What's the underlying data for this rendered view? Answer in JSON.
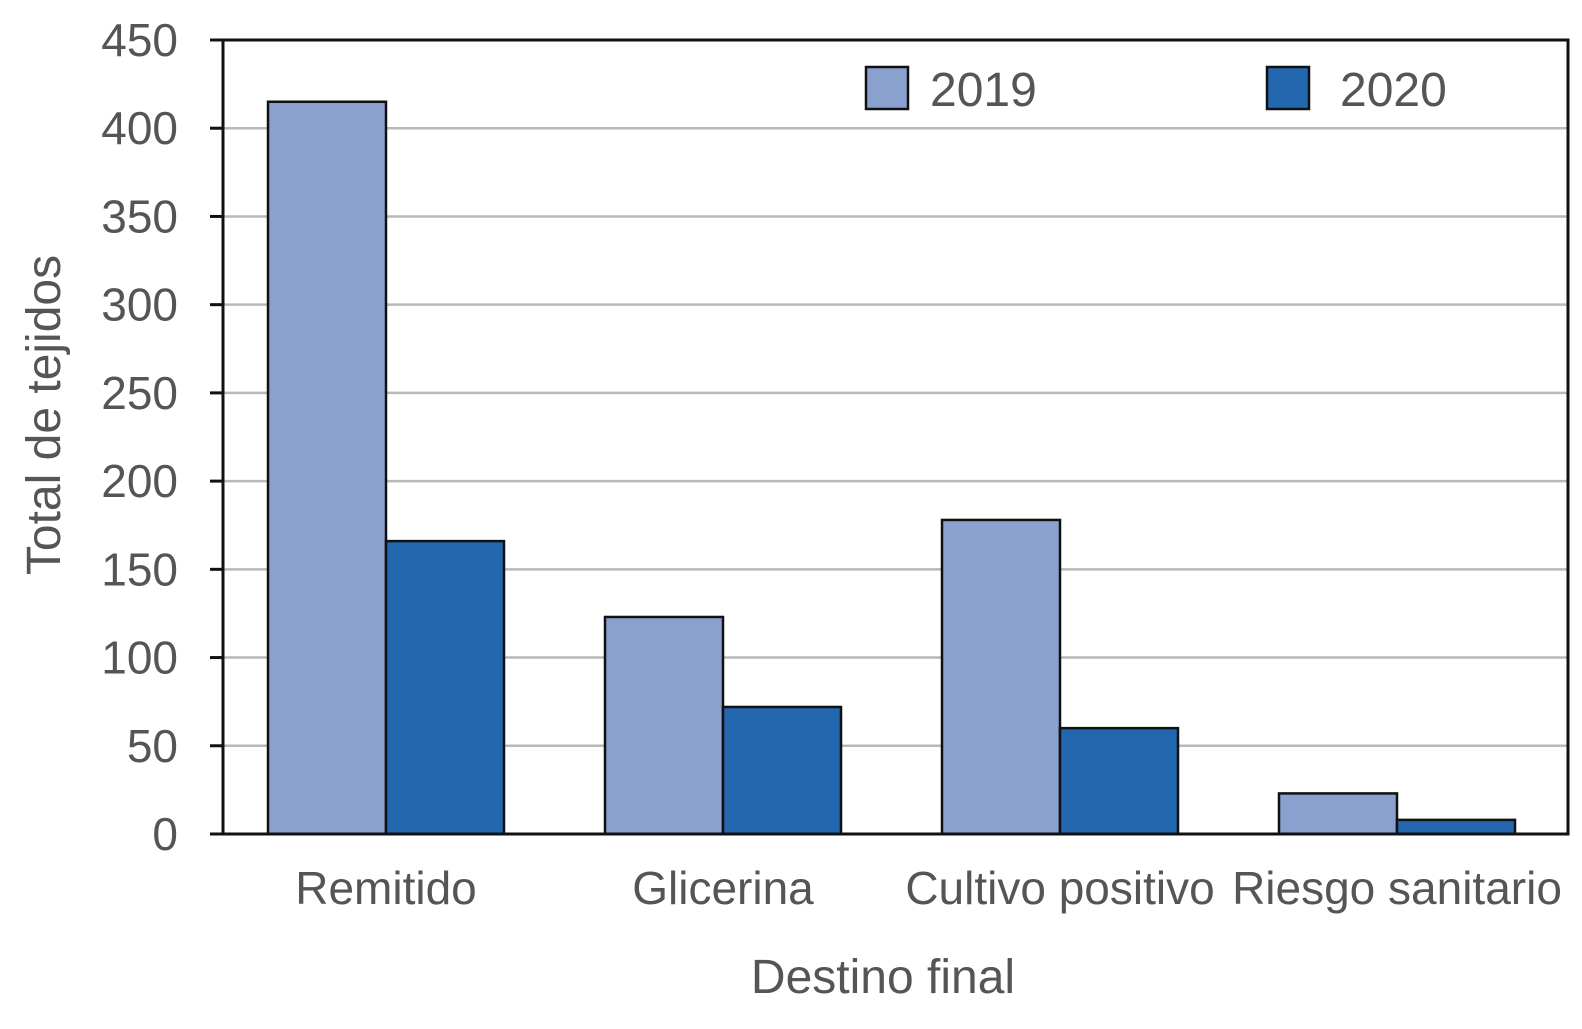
{
  "chart_data": {
    "type": "bar",
    "title": "",
    "xlabel": "Destino final",
    "ylabel": "Total de tejidos",
    "ylim": [
      0,
      450
    ],
    "yticks": [
      0,
      50,
      100,
      150,
      200,
      250,
      300,
      350,
      400,
      450
    ],
    "grid": true,
    "legend_position": "top-right",
    "categories": [
      "Remitido",
      "Glicerina",
      "Cultivo positivo",
      "Riesgo sanitario"
    ],
    "series": [
      {
        "name": "2019",
        "color": "#8aa1d0",
        "values": [
          415,
          123,
          178,
          23
        ]
      },
      {
        "name": "2020",
        "color": "#2367ae",
        "values": [
          166,
          72,
          60,
          8
        ]
      }
    ]
  }
}
